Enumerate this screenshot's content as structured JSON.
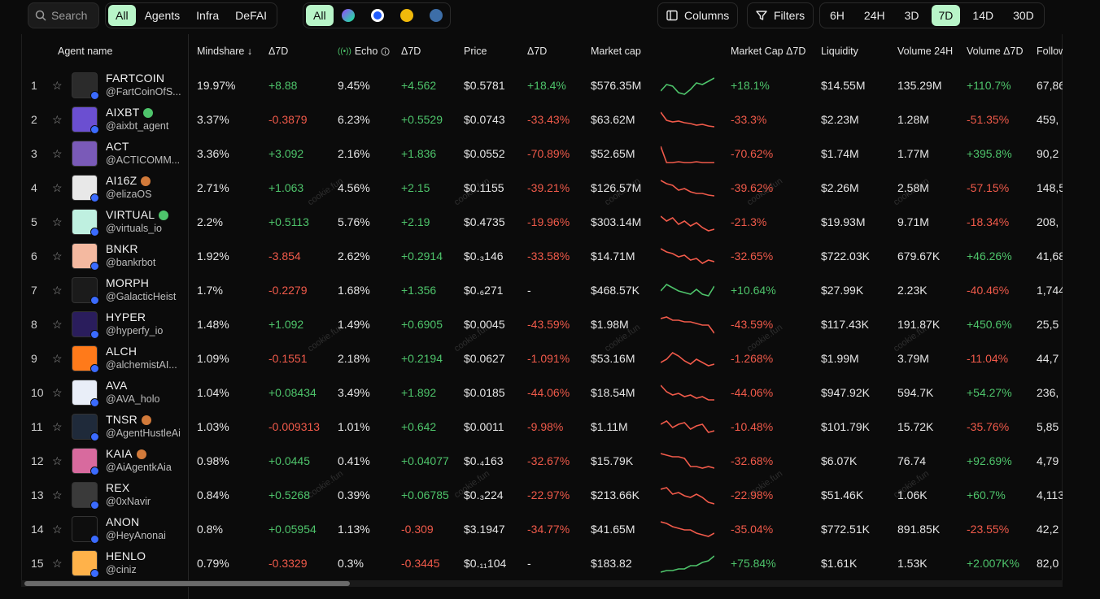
{
  "toolbar": {
    "search_label": "Search",
    "filter_tabs": [
      "All",
      "Agents",
      "Infra",
      "DeFAI"
    ],
    "chain_all": "All",
    "columns_label": "Columns",
    "filters_label": "Filters",
    "time_ranges": [
      "6H",
      "24H",
      "3D",
      "7D",
      "14D",
      "30D"
    ],
    "active_time_range": "7D"
  },
  "headers": {
    "agent_name": "Agent name",
    "mindshare": "Mindshare ↓",
    "mindshare_delta": "Δ7D",
    "echo": "Echo",
    "echo_delta": "Δ7D",
    "price": "Price",
    "price_delta": "Δ7D",
    "market_cap": "Market cap",
    "market_cap_delta": "Market Cap Δ7D",
    "liquidity": "Liquidity",
    "volume_24h": "Volume 24H",
    "volume_delta": "Volume Δ7D",
    "followers": "Followers"
  },
  "watermark": "cookie.fun",
  "rows": [
    {
      "rank": "1",
      "name": "FARTCOIN",
      "handle": "@FartCoinOfS...",
      "mindshare": "19.97%",
      "ms_d": "+8.88",
      "echo": "9.45%",
      "echo_d": "+4.562",
      "price": "$0.5781",
      "price_d": "+18.4%",
      "mcap": "$576.35M",
      "mcap_d": "+18.1%",
      "liq": "$14.55M",
      "vol": "135.29M",
      "vol_d": "+110.7%",
      "fol": "67,86",
      "trend": [
        18,
        10,
        12,
        20,
        22,
        16,
        8,
        10,
        6,
        2
      ]
    },
    {
      "rank": "2",
      "name": "AIXBT",
      "handle": "@aixbt_agent",
      "mindshare": "3.37%",
      "ms_d": "-0.3879",
      "echo": "6.23%",
      "echo_d": "+0.5529",
      "price": "$0.0743",
      "price_d": "-33.43%",
      "mcap": "$63.62M",
      "mcap_d": "-33.3%",
      "liq": "$2.23M",
      "vol": "1.28M",
      "vol_d": "-51.35%",
      "fol": "459,",
      "trend": [
        2,
        12,
        14,
        13,
        15,
        16,
        18,
        17,
        19,
        20
      ]
    },
    {
      "rank": "3",
      "name": "ACT",
      "handle": "@ACTICOMM...",
      "mindshare": "3.36%",
      "ms_d": "+3.092",
      "echo": "2.16%",
      "echo_d": "+1.836",
      "price": "$0.0552",
      "price_d": "-70.89%",
      "mcap": "$52.65M",
      "mcap_d": "-70.62%",
      "liq": "$1.74M",
      "vol": "1.77M",
      "vol_d": "+395.8%",
      "fol": "90,2",
      "trend": [
        2,
        22,
        22,
        21,
        22,
        22,
        21,
        22,
        22,
        22
      ]
    },
    {
      "rank": "4",
      "name": "AI16Z",
      "handle": "@elizaOS",
      "mindshare": "2.71%",
      "ms_d": "+1.063",
      "echo": "4.56%",
      "echo_d": "+2.15",
      "price": "$0.1155",
      "price_d": "-39.21%",
      "mcap": "$126.57M",
      "mcap_d": "-39.62%",
      "liq": "$2.26M",
      "vol": "2.58M",
      "vol_d": "-57.15%",
      "fol": "148,5",
      "trend": [
        2,
        6,
        8,
        14,
        12,
        16,
        18,
        18,
        20,
        21
      ]
    },
    {
      "rank": "5",
      "name": "VIRTUAL",
      "handle": "@virtuals_io",
      "mindshare": "2.2%",
      "ms_d": "+0.5113",
      "echo": "5.76%",
      "echo_d": "+2.19",
      "price": "$0.4735",
      "price_d": "-19.96%",
      "mcap": "$303.14M",
      "mcap_d": "-21.3%",
      "liq": "$19.93M",
      "vol": "9.71M",
      "vol_d": "-18.34%",
      "fol": "208,",
      "trend": [
        4,
        10,
        6,
        14,
        10,
        16,
        12,
        18,
        22,
        20
      ]
    },
    {
      "rank": "6",
      "name": "BNKR",
      "handle": "@bankrbot",
      "mindshare": "1.92%",
      "ms_d": "-3.854",
      "echo": "2.62%",
      "echo_d": "+0.2914",
      "price": "$0.₃146",
      "price_d": "-33.58%",
      "mcap": "$14.71M",
      "mcap_d": "-32.65%",
      "liq": "$722.03K",
      "vol": "679.67K",
      "vol_d": "+46.26%",
      "fol": "41,68",
      "trend": [
        2,
        6,
        8,
        12,
        10,
        16,
        14,
        20,
        16,
        18
      ]
    },
    {
      "rank": "7",
      "name": "MORPH",
      "handle": "@GalacticHeist",
      "mindshare": "1.7%",
      "ms_d": "-0.2279",
      "echo": "1.68%",
      "echo_d": "+1.356",
      "price": "$0.₆271",
      "price_d": "-",
      "mcap": "$468.57K",
      "mcap_d": "+10.64%",
      "liq": "$27.99K",
      "vol": "2.23K",
      "vol_d": "-40.46%",
      "fol": "1,744",
      "trend": [
        12,
        4,
        8,
        12,
        14,
        16,
        10,
        16,
        18,
        6
      ]
    },
    {
      "rank": "8",
      "name": "HYPER",
      "handle": "@hyperfy_io",
      "mindshare": "1.48%",
      "ms_d": "+1.092",
      "echo": "1.49%",
      "echo_d": "+0.6905",
      "price": "$0.0045",
      "price_d": "-43.59%",
      "mcap": "$1.98M",
      "mcap_d": "-43.59%",
      "liq": "$117.43K",
      "vol": "191.87K",
      "vol_d": "+450.6%",
      "fol": "25,5",
      "trend": [
        4,
        2,
        6,
        6,
        8,
        8,
        10,
        12,
        12,
        22
      ]
    },
    {
      "rank": "9",
      "name": "ALCH",
      "handle": "@alchemistAI...",
      "mindshare": "1.09%",
      "ms_d": "-0.1551",
      "echo": "2.18%",
      "echo_d": "+0.2194",
      "price": "$0.0627",
      "price_d": "-1.091%",
      "mcap": "$53.16M",
      "mcap_d": "-1.268%",
      "liq": "$1.99M",
      "vol": "3.79M",
      "vol_d": "-11.04%",
      "fol": "44,7",
      "trend": [
        16,
        12,
        4,
        8,
        14,
        18,
        12,
        16,
        20,
        18
      ]
    },
    {
      "rank": "10",
      "name": "AVA",
      "handle": "@AVA_holo",
      "mindshare": "1.04%",
      "ms_d": "+0.08434",
      "echo": "3.49%",
      "echo_d": "+1.892",
      "price": "$0.0185",
      "price_d": "-44.06%",
      "mcap": "$18.54M",
      "mcap_d": "-44.06%",
      "liq": "$947.92K",
      "vol": "594.7K",
      "vol_d": "+54.27%",
      "fol": "236,",
      "trend": [
        2,
        10,
        14,
        12,
        16,
        14,
        18,
        16,
        20,
        20
      ]
    },
    {
      "rank": "11",
      "name": "TNSR",
      "handle": "@AgentHustleAi",
      "mindshare": "1.03%",
      "ms_d": "-0.009313",
      "echo": "1.01%",
      "echo_d": "+0.642",
      "price": "$0.0011",
      "price_d": "-9.98%",
      "mcap": "$1.11M",
      "mcap_d": "-10.48%",
      "liq": "$101.79K",
      "vol": "15.72K",
      "vol_d": "-35.76%",
      "fol": "5,85",
      "trend": [
        8,
        4,
        12,
        8,
        6,
        14,
        10,
        8,
        18,
        16
      ]
    },
    {
      "rank": "12",
      "name": "KAIA",
      "handle": "@AiAgentkAia",
      "mindshare": "0.98%",
      "ms_d": "+0.0445",
      "echo": "0.41%",
      "echo_d": "+0.04077",
      "price": "$0.₄163",
      "price_d": "-32.67%",
      "mcap": "$15.79K",
      "mcap_d": "-32.68%",
      "liq": "$6.07K",
      "vol": "76.74",
      "vol_d": "+92.69%",
      "fol": "4,79",
      "trend": [
        2,
        4,
        6,
        6,
        8,
        18,
        18,
        20,
        18,
        20
      ]
    },
    {
      "rank": "13",
      "name": "REX",
      "handle": "@0xNavir",
      "mindshare": "0.84%",
      "ms_d": "+0.5268",
      "echo": "0.39%",
      "echo_d": "+0.06785",
      "price": "$0.₃224",
      "price_d": "-22.97%",
      "mcap": "$213.66K",
      "mcap_d": "-22.98%",
      "liq": "$51.46K",
      "vol": "1.06K",
      "vol_d": "+60.7%",
      "fol": "4,113",
      "trend": [
        4,
        2,
        10,
        8,
        12,
        14,
        10,
        14,
        20,
        22
      ]
    },
    {
      "rank": "14",
      "name": "ANON",
      "handle": "@HeyAnonai",
      "mindshare": "0.8%",
      "ms_d": "+0.05954",
      "echo": "1.13%",
      "echo_d": "-0.309",
      "price": "$3.1947",
      "price_d": "-34.77%",
      "mcap": "$41.65M",
      "mcap_d": "-35.04%",
      "liq": "$772.51K",
      "vol": "891.85K",
      "vol_d": "-23.55%",
      "fol": "42,2",
      "trend": [
        2,
        4,
        8,
        10,
        12,
        12,
        16,
        18,
        20,
        16
      ]
    },
    {
      "rank": "15",
      "name": "HENLO",
      "handle": "@ciniz",
      "mindshare": "0.79%",
      "ms_d": "-0.3329",
      "echo": "0.3%",
      "echo_d": "-0.3445",
      "price": "$0.₁₁104",
      "price_d": "-",
      "mcap": "$183.82",
      "mcap_d": "+75.84%",
      "liq": "$1.61K",
      "vol": "1.53K",
      "vol_d": "+2.007K%",
      "fol": "82,0",
      "trend": [
        22,
        20,
        20,
        18,
        18,
        14,
        14,
        10,
        8,
        2
      ]
    }
  ],
  "colors": {
    "positive": "#4ec46b",
    "negative": "#f05a4a",
    "accent": "#b8f5c8"
  }
}
